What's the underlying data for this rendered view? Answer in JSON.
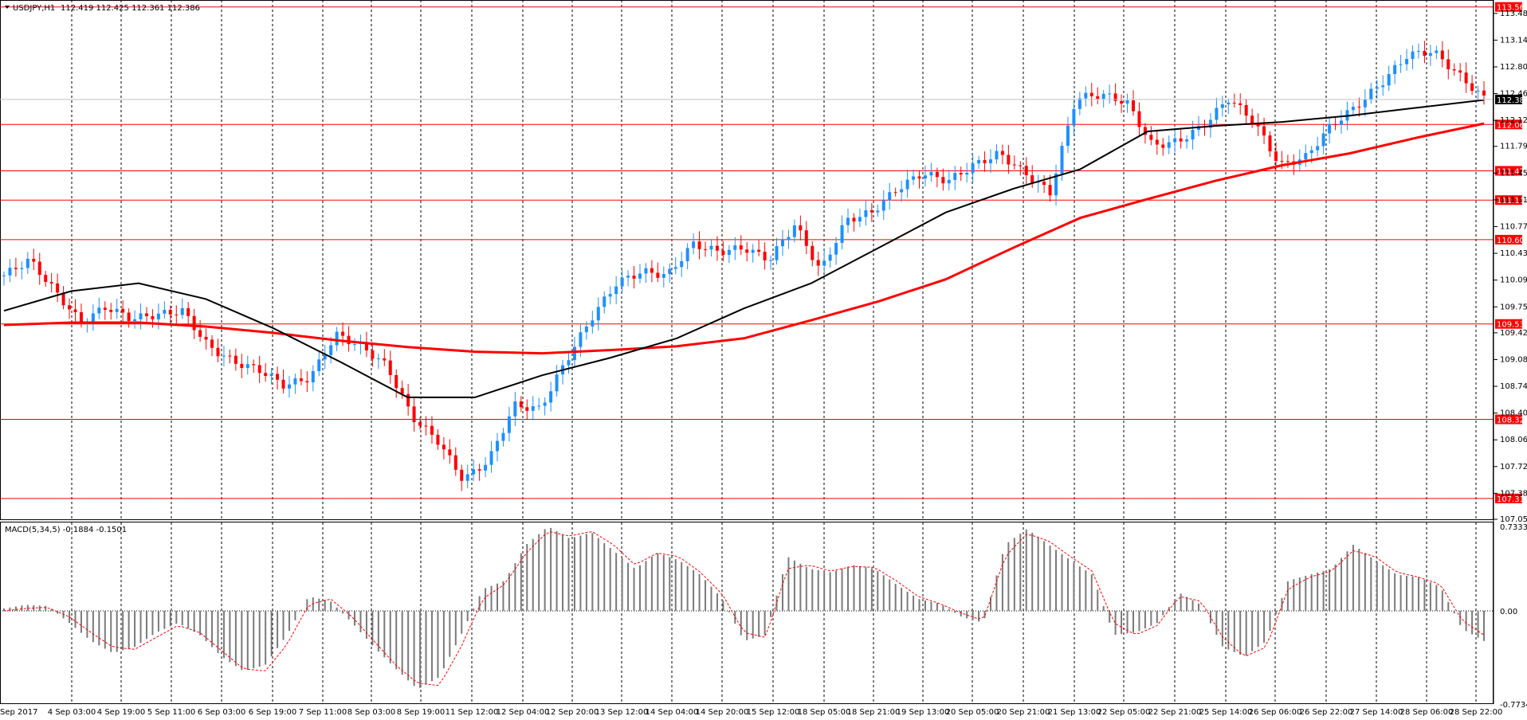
{
  "chart_data": [
    {
      "type": "candlestick",
      "symbol": "USDJPY,H1",
      "ohlc_text": "112.419 112.425 112.361 112.386",
      "current_price": 112.386,
      "ylim": [
        107.05,
        113.65
      ],
      "y_ticks": [
        113.48,
        113.14,
        112.8,
        112.46,
        112.12,
        111.79,
        111.45,
        111.11,
        110.77,
        110.43,
        110.09,
        109.75,
        109.42,
        109.08,
        108.74,
        108.4,
        108.06,
        107.72,
        107.38,
        107.05
      ],
      "x_labels": [
        "1 Sep 2017",
        "4 Sep 03:00",
        "4 Sep 19:00",
        "5 Sep 11:00",
        "6 Sep 03:00",
        "6 Sep 19:00",
        "7 Sep 11:00",
        "8 Sep 03:00",
        "8 Sep 19:00",
        "11 Sep 12:00",
        "12 Sep 04:00",
        "12 Sep 20:00",
        "13 Sep 12:00",
        "14 Sep 04:00",
        "14 Sep 20:00",
        "15 Sep 12:00",
        "18 Sep 05:00",
        "18 Sep 21:00",
        "19 Sep 13:00",
        "20 Sep 05:00",
        "20 Sep 21:00",
        "21 Sep 13:00",
        "22 Sep 05:00",
        "22 Sep 21:00",
        "25 Sep 14:00",
        "26 Sep 06:00",
        "26 Sep 22:00",
        "27 Sep 14:00",
        "28 Sep 06:00",
        "28 Sep 22:00"
      ],
      "horizontal_levels": [
        {
          "value": 113.562,
          "label": "113.562"
        },
        {
          "value": 112.068,
          "label": "112.068"
        },
        {
          "value": 111.479,
          "label": "111.479"
        },
        {
          "value": 111.107,
          "label": "111.107"
        },
        {
          "value": 110.604,
          "label": "110.604"
        },
        {
          "value": 109.533,
          "label": "109.533"
        },
        {
          "value": 108.32,
          "label": "108.320"
        },
        {
          "value": 107.315,
          "label": "107.315"
        }
      ],
      "series": [
        {
          "name": "close_path",
          "values": [
            110.15,
            110.35,
            109.95,
            109.55,
            109.75,
            109.6,
            109.65,
            109.7,
            109.25,
            109.05,
            108.95,
            108.75,
            108.85,
            109.4,
            109.25,
            109.0,
            108.35,
            108.05,
            107.55,
            107.8,
            108.5,
            108.45,
            109.05,
            109.6,
            110.05,
            110.2,
            110.15,
            110.55,
            110.45,
            110.5,
            110.35,
            110.8,
            110.2,
            110.85,
            110.95,
            111.25,
            111.45,
            111.35,
            111.55,
            111.7,
            111.45,
            111.2,
            112.4,
            112.45,
            112.35,
            111.8,
            111.85,
            112.05,
            112.4,
            112.1,
            111.55,
            111.65,
            112.05,
            112.3,
            112.6,
            112.95,
            113.0,
            112.7,
            112.4
          ]
        },
        {
          "name": "ma_black",
          "values": [
            109.7,
            109.95,
            110.05,
            109.85,
            109.48,
            109.05,
            108.6,
            108.6,
            108.88,
            109.1,
            109.35,
            109.73,
            110.05,
            110.5,
            110.95,
            111.25,
            111.5,
            111.98,
            112.05,
            112.1,
            112.18,
            112.28,
            112.38
          ]
        },
        {
          "name": "ma_red",
          "values": [
            109.52,
            109.55,
            109.55,
            109.5,
            109.42,
            109.32,
            109.24,
            109.18,
            109.16,
            109.2,
            109.25,
            109.35,
            109.58,
            109.82,
            110.1,
            110.5,
            110.88,
            111.12,
            111.35,
            111.55,
            111.7,
            111.9,
            112.08
          ]
        }
      ]
    },
    {
      "type": "histogram",
      "title": "MACD(5,34,5) -0.1884 -0.1501",
      "ylim": [
        -0.7734,
        0.7333
      ],
      "y_ticks": [
        0.7333,
        0.0,
        -0.7734
      ],
      "series": [
        {
          "name": "bars",
          "values": [
            0.02,
            0.05,
            0.04,
            -0.1,
            -0.25,
            -0.35,
            -0.3,
            -0.18,
            -0.1,
            -0.2,
            -0.38,
            -0.5,
            -0.45,
            -0.2,
            0.12,
            0.08,
            -0.1,
            -0.3,
            -0.48,
            -0.65,
            -0.55,
            -0.2,
            0.18,
            0.25,
            0.55,
            0.7,
            0.6,
            0.65,
            0.5,
            0.35,
            0.48,
            0.42,
            0.3,
            0.1,
            -0.25,
            -0.2,
            0.45,
            0.35,
            0.32,
            0.38,
            0.35,
            0.22,
            0.1,
            0.06,
            -0.05,
            -0.1,
            0.55,
            0.68,
            0.55,
            0.42,
            0.3,
            -0.2,
            -0.18,
            -0.1,
            0.15,
            0.05,
            -0.3,
            -0.38,
            -0.25,
            0.25,
            0.3,
            0.35,
            0.55,
            0.42,
            0.3,
            0.28,
            0.2,
            -0.15,
            -0.25
          ]
        },
        {
          "name": "signal",
          "values": [
            0.0,
            0.02,
            0.03,
            -0.05,
            -0.18,
            -0.3,
            -0.32,
            -0.22,
            -0.12,
            -0.18,
            -0.33,
            -0.48,
            -0.5,
            -0.28,
            0.05,
            0.1,
            -0.05,
            -0.25,
            -0.45,
            -0.6,
            -0.62,
            -0.3,
            0.1,
            0.22,
            0.48,
            0.66,
            0.62,
            0.66,
            0.55,
            0.38,
            0.48,
            0.45,
            0.32,
            0.14,
            -0.18,
            -0.22,
            0.35,
            0.38,
            0.33,
            0.37,
            0.36,
            0.25,
            0.12,
            0.06,
            -0.02,
            -0.08,
            0.45,
            0.64,
            0.58,
            0.45,
            0.33,
            -0.1,
            -0.2,
            -0.12,
            0.12,
            0.08,
            -0.22,
            -0.38,
            -0.3,
            0.18,
            0.28,
            0.33,
            0.5,
            0.45,
            0.32,
            0.28,
            0.22,
            -0.08,
            -0.2
          ]
        }
      ]
    }
  ]
}
